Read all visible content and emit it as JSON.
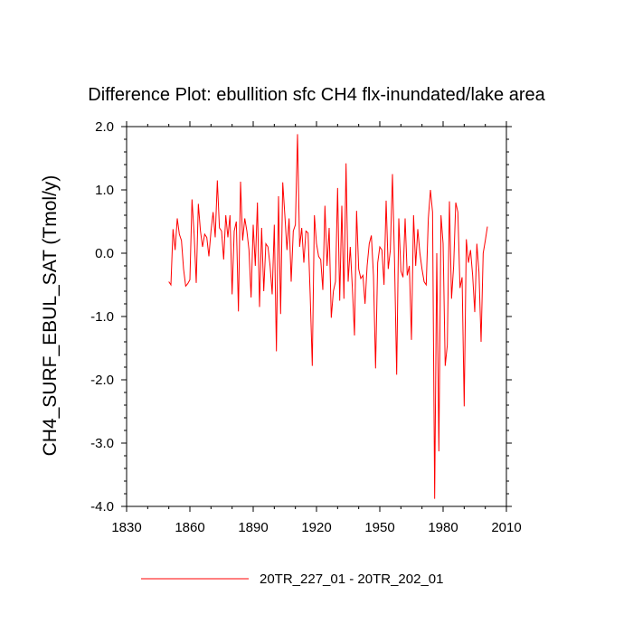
{
  "chart_data": {
    "type": "line",
    "title": "Difference Plot: ebullition sfc CH4 flx-inundated/lake area",
    "xlabel": "",
    "ylabel": "CH4_SURF_EBUL_SAT  (Tmol/y)",
    "xlim": [
      1830,
      2010
    ],
    "ylim": [
      -4.0,
      2.0
    ],
    "x_ticks": [
      1830,
      1860,
      1890,
      1920,
      1950,
      1980,
      2010
    ],
    "y_ticks": [
      2.0,
      1.0,
      0.0,
      -1.0,
      -2.0,
      -3.0,
      -4.0
    ],
    "x_tick_labels": [
      "1830",
      "1860",
      "1890",
      "1920",
      "1950",
      "1980",
      "2010"
    ],
    "y_tick_labels": [
      "2.0",
      "1.0",
      "0.0",
      "-1.0",
      "-2.0",
      "-3.0",
      "-4.0"
    ],
    "legend_position": "bottom",
    "series": [
      {
        "name": "20TR_227_01 - 20TR_202_01",
        "color": "#ff0000",
        "x_start": 1850,
        "x_step": 1,
        "values": [
          -0.45,
          -0.5,
          0.38,
          0.05,
          0.55,
          0.3,
          0.2,
          -0.25,
          -0.52,
          -0.48,
          -0.42,
          0.85,
          0.3,
          -0.47,
          0.78,
          0.35,
          0.1,
          0.3,
          0.25,
          -0.05,
          0.35,
          0.65,
          0.25,
          1.15,
          0.4,
          0.35,
          -0.1,
          0.6,
          0.25,
          0.6,
          -0.65,
          0.35,
          0.5,
          -0.92,
          1.13,
          0.2,
          0.55,
          0.35,
          0.05,
          -0.7,
          0.45,
          -0.2,
          0.8,
          -0.85,
          0.4,
          -0.6,
          0.15,
          0.1,
          -0.2,
          -0.65,
          0.45,
          -1.55,
          0.9,
          -0.96,
          1.12,
          0.6,
          0.05,
          0.55,
          -0.45,
          0.35,
          0.45,
          1.88,
          0.1,
          0.4,
          -0.15,
          0.35,
          0.32,
          -0.65,
          -1.78,
          0.6,
          0.15,
          -0.05,
          -0.1,
          -0.58,
          0.75,
          -0.2,
          0.4,
          -1.02,
          -0.6,
          -0.45,
          1.03,
          -0.75,
          0.75,
          -0.72,
          1.42,
          -0.45,
          0.1,
          -0.55,
          -1.3,
          0.67,
          -0.25,
          -0.4,
          -0.35,
          -0.8,
          -0.2,
          0.15,
          0.28,
          -0.35,
          -1.82,
          -0.15,
          0.1,
          0.05,
          -0.5,
          0.83,
          -0.25,
          0.05,
          1.25,
          -0.15,
          -1.92,
          0.55,
          -0.28,
          -0.38,
          0.55,
          -0.35,
          -0.2,
          -1.37,
          0.6,
          -0.2,
          0.38,
          0.0,
          -0.25,
          -0.45,
          -0.5,
          0.55,
          1.0,
          0.65,
          -3.88,
          0.0,
          -3.13,
          0.6,
          0.15,
          -1.78,
          -1.45,
          0.82,
          -0.72,
          -0.2,
          0.8,
          0.65,
          -0.55,
          -0.38,
          -2.42,
          0.22,
          -0.15,
          0.05,
          -0.35,
          -0.93,
          0.15,
          -0.3,
          -1.4,
          0.0,
          0.2,
          0.42
        ]
      }
    ]
  }
}
